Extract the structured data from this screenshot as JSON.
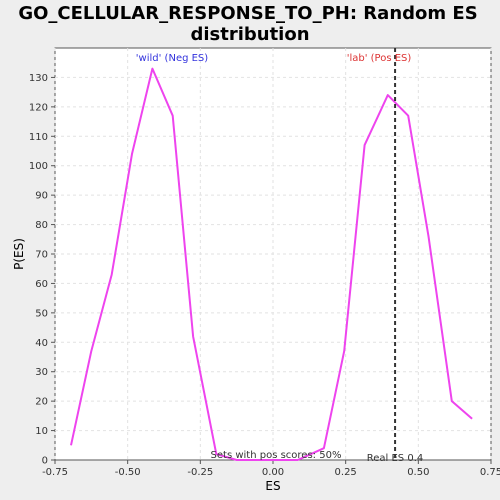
{
  "chart_data": {
    "type": "line",
    "title_line1": "GO_CELLULAR_RESPONSE_TO_PH: Random ES",
    "title_line2": "distribution",
    "xlabel": "ES",
    "ylabel": "P(ES)",
    "xlim": [
      -0.75,
      0.75
    ],
    "ylim": [
      0,
      140
    ],
    "xticks": [
      -0.75,
      -0.5,
      -0.25,
      0.0,
      0.25,
      0.5,
      0.75
    ],
    "xtick_labels": [
      "-0.75",
      "-0.50",
      "-0.25",
      "0.00",
      "0.25",
      "0.50",
      "0.75"
    ],
    "yticks": [
      0,
      10,
      20,
      30,
      40,
      50,
      60,
      70,
      80,
      90,
      100,
      110,
      120,
      130
    ],
    "grid": true,
    "series": [
      {
        "color": "#ee44ee",
        "x": [
          -0.695,
          -0.625,
          -0.555,
          -0.485,
          -0.415,
          -0.345,
          -0.275,
          -0.195,
          -0.125,
          -0.055,
          0.015,
          0.085,
          0.175,
          0.245,
          0.315,
          0.395,
          0.465,
          0.535,
          0.615,
          0.685
        ],
        "y": [
          5,
          37,
          63,
          104,
          133,
          117,
          42,
          2,
          0,
          0,
          0,
          0,
          4,
          37,
          107,
          124,
          117,
          76,
          20,
          14
        ]
      }
    ],
    "vline": {
      "x": 0.42,
      "color": "#333333",
      "style": "dashed"
    },
    "annotations": {
      "neg_label": "'wild' (Neg ES)",
      "neg_color": "#3333dd",
      "pos_label": "'lab' (Pos ES)",
      "pos_color": "#dd3333",
      "pos_scores": "Sets with pos scores: 50%",
      "real_es": "Real ES 0.4"
    }
  }
}
